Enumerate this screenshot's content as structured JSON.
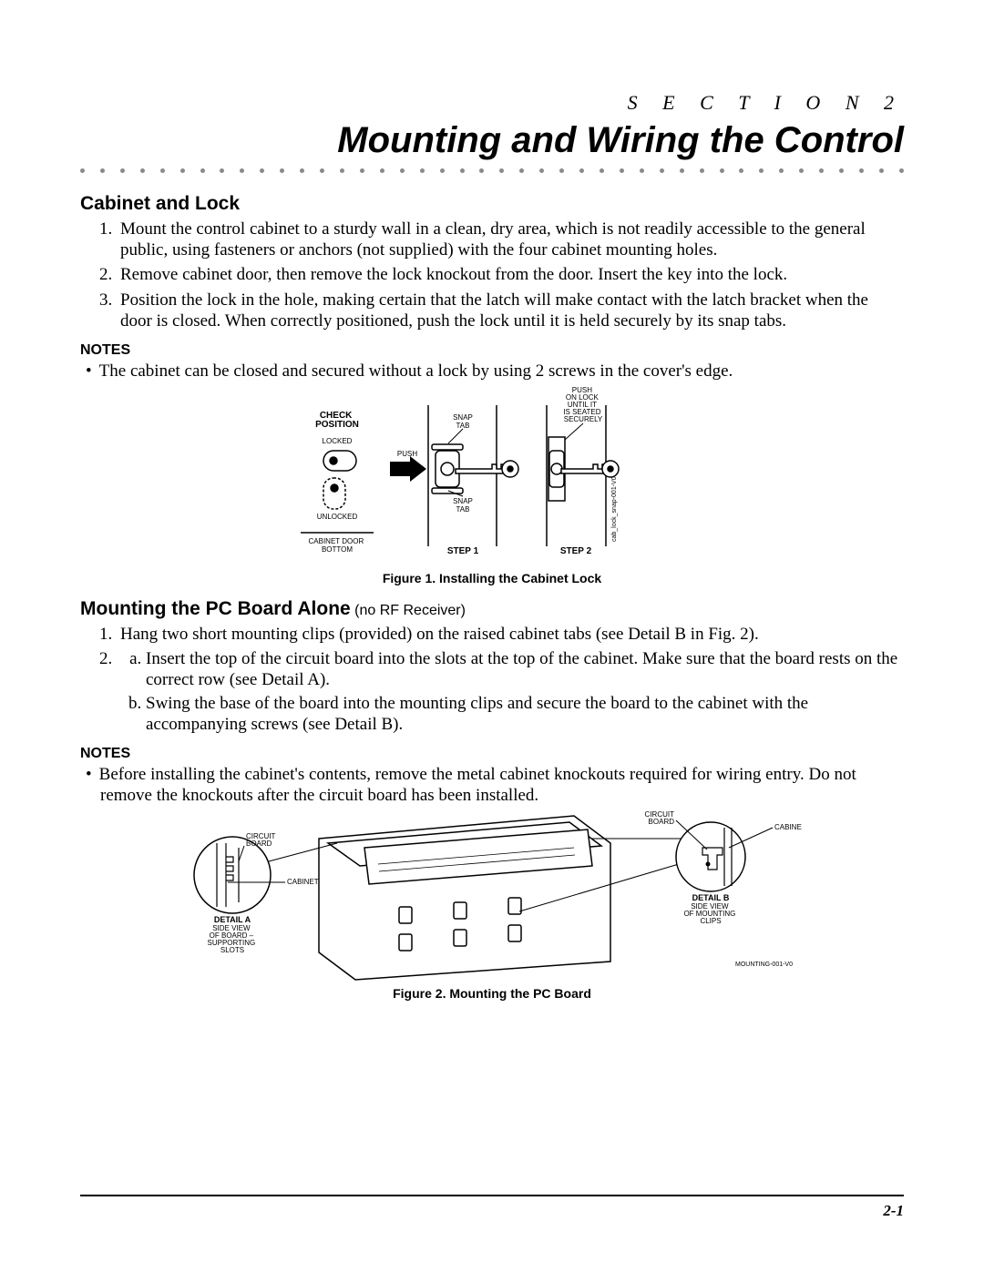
{
  "section_label": "S E C T I O N   2",
  "main_title": "Mounting and Wiring the Control",
  "dot_count": 42,
  "dot_color": "#8a8a8a",
  "sec1": {
    "heading": "Cabinet and Lock",
    "items": [
      "Mount the control cabinet to a sturdy wall in a clean, dry area, which is not readily accessible to the general public, using fasteners or anchors (not supplied) with the four cabinet mounting holes.",
      "Remove cabinet door, then remove the lock knockout from the door. Insert the key into the lock.",
      "Position the lock in the hole, making certain that the latch will make contact with the latch bracket when the door is closed. When correctly positioned, push the lock until it is held securely by its snap tabs."
    ],
    "notes_label": "NOTES",
    "notes": [
      "The cabinet can be closed and secured without a lock by using 2 screws in the cover's edge."
    ]
  },
  "fig1": {
    "caption": "Figure 1. Installing the Cabinet Lock",
    "labels": {
      "check_position": "CHECK\nPOSITION",
      "locked": "LOCKED",
      "unlocked": "UNLOCKED",
      "cabinet_door_bottom": "CABINET DOOR\nBOTTOM",
      "push": "PUSH",
      "snap_tab_top": "SNAP\nTAB",
      "snap_tab_bottom": "SNAP\nTAB",
      "push_on_lock": "PUSH\nON LOCK\nUNTIL IT\nIS SEATED\nSECURELY",
      "step1": "STEP 1",
      "step2": "STEP 2",
      "side_note": "cab_lock_snap-001-V0"
    },
    "colors": {
      "stroke": "#000000",
      "fill_white": "#ffffff",
      "fill_black": "#000000"
    },
    "font_tiny": 8,
    "font_small_bold": 10
  },
  "sec2": {
    "heading": "Mounting the PC Board Alone",
    "heading_sub": " (no RF Receiver)",
    "item1": "Hang two short mounting clips (provided) on the raised cabinet tabs (see Detail B in Fig. 2).",
    "item2a": "Insert the top of the circuit board into the slots at the top of the cabinet. Make sure that the board rests on the correct row (see Detail A).",
    "item2b": "Swing the base of the board into the mounting clips and secure the board to the cabinet with the accompanying screws (see Detail B).",
    "notes_label": "NOTES",
    "notes": [
      "Before installing the cabinet's contents, remove the metal cabinet knockouts required for wiring entry. Do not remove the knockouts after the circuit board has been installed."
    ]
  },
  "fig2": {
    "caption": "Figure 2.  Mounting the PC Board",
    "labels": {
      "circuit_board_l": "CIRCUIT\nBOARD",
      "cabinet_l": "CABINET",
      "detail_a_bold": "DETAIL A",
      "detail_a_rest": "SIDE VIEW\nOF BOARD –\nSUPPORTING\nSLOTS",
      "circuit_board_r": "CIRCUIT\nBOARD",
      "cabinet_r": "CABINET",
      "detail_b_bold": "DETAIL B",
      "detail_b_rest": "SIDE VIEW\nOF MOUNTING\nCLIPS",
      "drawing_no": "MOUNTING-001-V0"
    },
    "colors": {
      "stroke": "#000000",
      "fill_white": "#ffffff"
    },
    "font_tiny": 8,
    "font_small_bold": 10
  },
  "page_number": "2-1"
}
